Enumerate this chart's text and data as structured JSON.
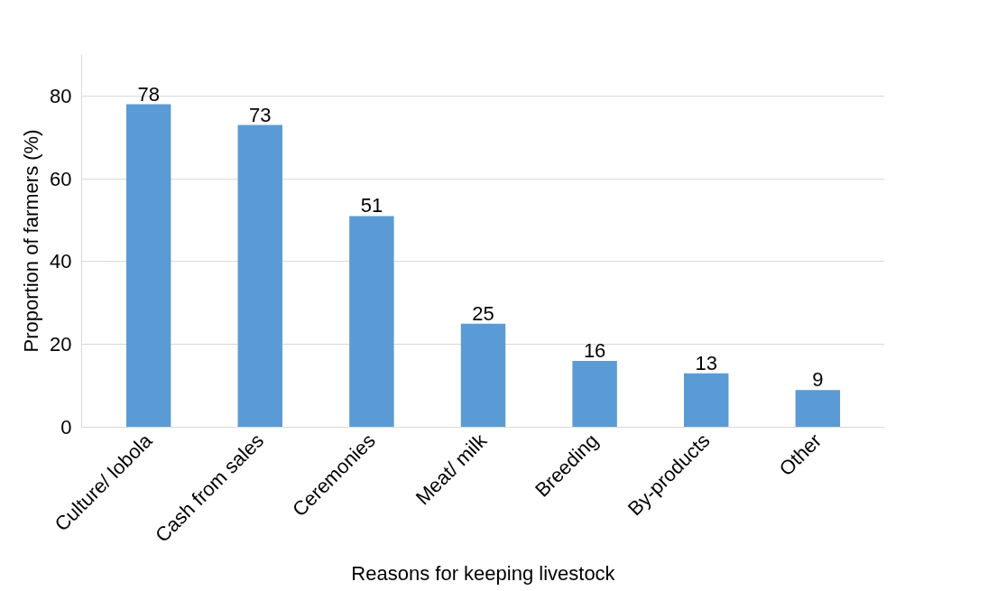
{
  "chart_data": {
    "type": "bar",
    "xlabel": "Reasons for keeping livestock",
    "ylabel": "Proportion of farmers (%)",
    "categories": [
      "Culture/ lobola",
      "Cash from sales",
      "Ceremonies",
      "Meat/ milk",
      "Breeding",
      "By-products",
      "Other"
    ],
    "values": [
      78,
      73,
      51,
      25,
      16,
      13,
      9
    ],
    "color": "#5b9bd5",
    "ylim": [
      0,
      90
    ],
    "yticks": [
      0,
      20,
      40,
      60,
      80
    ],
    "grid": "y",
    "data_labels": true
  }
}
